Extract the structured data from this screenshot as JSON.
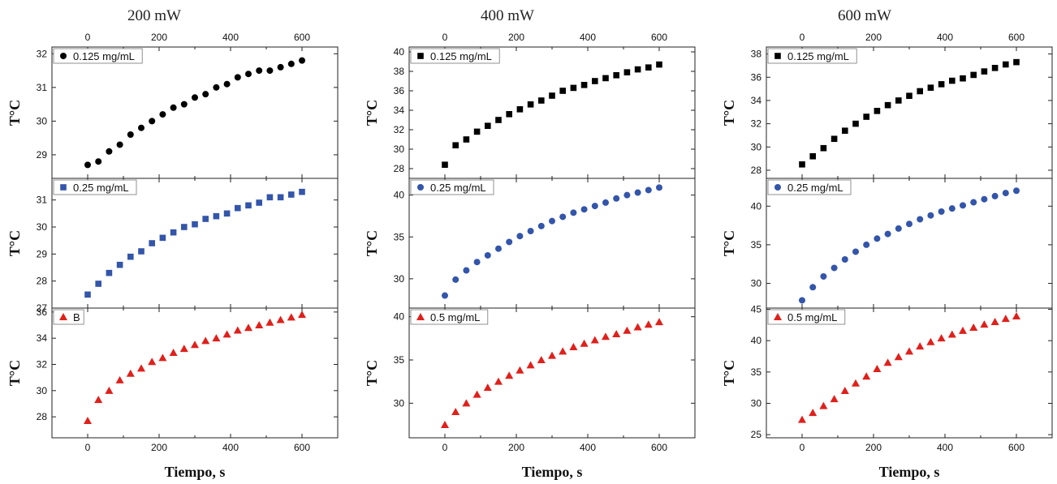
{
  "columns": [
    {
      "title": "200 mW",
      "xlabel": "Tiempo, s"
    },
    {
      "title": "400 mW",
      "xlabel": "Tiempo, s"
    },
    {
      "title": "600 mW",
      "xlabel": "Tiempo, s"
    }
  ],
  "colors": {
    "black": "#000000",
    "blue": "#3355aa",
    "red": "#e0201b"
  },
  "chart_data": [
    {
      "type": "scatter",
      "column_title": "200 mW",
      "ylabel": "T°C",
      "marker": "circle",
      "color": "#000000",
      "xlim": [
        -100,
        700
      ],
      "ylim": [
        28.3,
        32.2
      ],
      "xticks": [
        0,
        200,
        400,
        600
      ],
      "yticks": [
        29,
        30,
        31,
        32
      ],
      "series": [
        {
          "name": "0.125 mg/mL",
          "x": [
            0,
            30,
            60,
            90,
            120,
            150,
            180,
            210,
            240,
            270,
            300,
            330,
            360,
            390,
            420,
            450,
            480,
            510,
            540,
            570,
            600
          ],
          "y": [
            28.7,
            28.8,
            29.1,
            29.3,
            29.6,
            29.8,
            30.0,
            30.2,
            30.4,
            30.5,
            30.7,
            30.8,
            31.0,
            31.1,
            31.3,
            31.4,
            31.5,
            31.5,
            31.6,
            31.7,
            31.8
          ]
        }
      ]
    },
    {
      "type": "scatter",
      "column_title": "200 mW",
      "ylabel": "T°C",
      "marker": "square",
      "color": "#3355aa",
      "xlim": [
        -100,
        700
      ],
      "ylim": [
        27.0,
        31.8
      ],
      "xticks": [
        0,
        200,
        400,
        600
      ],
      "yticks": [
        27,
        28,
        29,
        30,
        31
      ],
      "series": [
        {
          "name": "0.25 mg/mL",
          "x": [
            0,
            30,
            60,
            90,
            120,
            150,
            180,
            210,
            240,
            270,
            300,
            330,
            360,
            390,
            420,
            450,
            480,
            510,
            540,
            570,
            600
          ],
          "y": [
            27.5,
            27.9,
            28.3,
            28.6,
            28.9,
            29.1,
            29.4,
            29.6,
            29.8,
            30.0,
            30.1,
            30.3,
            30.4,
            30.5,
            30.7,
            30.8,
            30.9,
            31.1,
            31.1,
            31.2,
            31.3
          ]
        }
      ]
    },
    {
      "type": "scatter",
      "column_title": "200 mW",
      "ylabel": "T°C",
      "marker": "triangle",
      "color": "#e0201b",
      "xlim": [
        -100,
        700
      ],
      "ylim": [
        26.4,
        36.3
      ],
      "xticks": [
        -100,
        0,
        100,
        200,
        300,
        400,
        500,
        600,
        700
      ],
      "xticklabels_shown": [
        0,
        200,
        400,
        600
      ],
      "yticks": [
        28,
        30,
        32,
        34,
        36
      ],
      "series": [
        {
          "name": "B",
          "x": [
            0,
            30,
            60,
            90,
            120,
            150,
            180,
            210,
            240,
            270,
            300,
            330,
            360,
            390,
            420,
            450,
            480,
            510,
            540,
            570,
            600
          ],
          "y": [
            27.7,
            29.3,
            30.0,
            30.8,
            31.3,
            31.7,
            32.2,
            32.5,
            32.9,
            33.2,
            33.5,
            33.8,
            34.0,
            34.3,
            34.6,
            34.8,
            35.0,
            35.2,
            35.4,
            35.6,
            35.8
          ]
        }
      ]
    },
    {
      "type": "scatter",
      "column_title": "400 mW",
      "ylabel": "T°C",
      "marker": "square",
      "color": "#000000",
      "xlim": [
        -100,
        700
      ],
      "ylim": [
        27.0,
        40.5
      ],
      "xticks": [
        0,
        200,
        400,
        600
      ],
      "yticks": [
        28,
        30,
        32,
        34,
        36,
        38,
        40
      ],
      "series": [
        {
          "name": "0.125 mg/mL",
          "x": [
            0,
            30,
            60,
            90,
            120,
            150,
            180,
            210,
            240,
            270,
            300,
            330,
            360,
            390,
            420,
            450,
            480,
            510,
            540,
            570,
            600
          ],
          "y": [
            28.4,
            30.4,
            31.0,
            31.8,
            32.4,
            33.0,
            33.6,
            34.1,
            34.6,
            35.0,
            35.5,
            36.0,
            36.3,
            36.6,
            37.0,
            37.3,
            37.6,
            37.9,
            38.2,
            38.4,
            38.7
          ]
        }
      ]
    },
    {
      "type": "scatter",
      "column_title": "400 mW",
      "ylabel": "T°C",
      "marker": "circle",
      "color": "#3355aa",
      "xlim": [
        -100,
        700
      ],
      "ylim": [
        26.5,
        42.0
      ],
      "xticks": [
        0,
        200,
        400,
        600
      ],
      "yticks": [
        30,
        35,
        40
      ],
      "series": [
        {
          "name": "0.25 mg/mL",
          "x": [
            0,
            30,
            60,
            90,
            120,
            150,
            180,
            210,
            240,
            270,
            300,
            330,
            360,
            390,
            420,
            450,
            480,
            510,
            540,
            570,
            600
          ],
          "y": [
            28.0,
            29.9,
            31.0,
            32.0,
            32.8,
            33.6,
            34.4,
            35.1,
            35.7,
            36.3,
            36.9,
            37.4,
            37.9,
            38.3,
            38.7,
            39.1,
            39.6,
            40.0,
            40.3,
            40.6,
            40.9
          ]
        }
      ]
    },
    {
      "type": "scatter",
      "column_title": "400 mW",
      "ylabel": "T°C",
      "marker": "triangle",
      "color": "#e0201b",
      "xlim": [
        -100,
        700
      ],
      "ylim": [
        26.0,
        41.0
      ],
      "xticks": [
        -100,
        0,
        100,
        200,
        300,
        400,
        500,
        600,
        700
      ],
      "xticklabels_shown": [
        0,
        200,
        400,
        600
      ],
      "yticks": [
        30,
        35,
        40
      ],
      "series": [
        {
          "name": "0.5 mg/mL",
          "x": [
            0,
            30,
            60,
            90,
            120,
            150,
            180,
            210,
            240,
            270,
            300,
            330,
            360,
            390,
            420,
            450,
            480,
            510,
            540,
            570,
            600
          ],
          "y": [
            27.5,
            29.0,
            30.0,
            31.0,
            31.8,
            32.5,
            33.2,
            33.8,
            34.4,
            35.0,
            35.5,
            36.0,
            36.5,
            36.9,
            37.3,
            37.7,
            38.0,
            38.4,
            38.8,
            39.1,
            39.4
          ]
        }
      ]
    },
    {
      "type": "scatter",
      "column_title": "600 mW",
      "ylabel": "T°C",
      "marker": "square",
      "color": "#000000",
      "xlim": [
        -100,
        700
      ],
      "ylim": [
        27.3,
        38.6
      ],
      "xticks": [
        0,
        200,
        400,
        600
      ],
      "yticks": [
        28,
        30,
        32,
        34,
        36,
        38
      ],
      "series": [
        {
          "name": "0.125 mg/mL",
          "x": [
            0,
            30,
            60,
            90,
            120,
            150,
            180,
            210,
            240,
            270,
            300,
            330,
            360,
            390,
            420,
            450,
            480,
            510,
            540,
            570,
            600
          ],
          "y": [
            28.5,
            29.2,
            29.9,
            30.7,
            31.4,
            32.0,
            32.6,
            33.1,
            33.6,
            34.0,
            34.4,
            34.8,
            35.1,
            35.4,
            35.7,
            35.9,
            36.2,
            36.5,
            36.8,
            37.1,
            37.3
          ]
        }
      ]
    },
    {
      "type": "scatter",
      "column_title": "600 mW",
      "ylabel": "T°C",
      "marker": "circle",
      "color": "#3355aa",
      "xlim": [
        -100,
        700
      ],
      "ylim": [
        26.8,
        43.6
      ],
      "xticks": [
        0,
        200,
        400,
        600
      ],
      "yticks": [
        30,
        35,
        40
      ],
      "series": [
        {
          "name": "0.25 mg/mL",
          "x": [
            0,
            30,
            60,
            90,
            120,
            150,
            180,
            210,
            240,
            270,
            300,
            330,
            360,
            390,
            420,
            450,
            480,
            510,
            540,
            570,
            600
          ],
          "y": [
            27.8,
            29.5,
            30.9,
            32.0,
            33.1,
            34.1,
            35.0,
            35.8,
            36.4,
            37.1,
            37.7,
            38.3,
            38.8,
            39.3,
            39.7,
            40.1,
            40.5,
            40.9,
            41.3,
            41.7,
            42.0
          ]
        }
      ]
    },
    {
      "type": "scatter",
      "column_title": "600 mW",
      "ylabel": "T°C",
      "marker": "triangle",
      "color": "#e0201b",
      "xlim": [
        -100,
        700
      ],
      "ylim": [
        24.5,
        45.2
      ],
      "xticks": [
        -100,
        0,
        100,
        200,
        300,
        400,
        500,
        600,
        700
      ],
      "xticklabels_shown": [
        0,
        200,
        400,
        600
      ],
      "yticks": [
        25,
        30,
        35,
        40,
        45
      ],
      "series": [
        {
          "name": "0.5 mg/mL",
          "x": [
            0,
            30,
            60,
            90,
            120,
            150,
            180,
            210,
            240,
            270,
            300,
            330,
            360,
            390,
            420,
            450,
            480,
            510,
            540,
            570,
            600
          ],
          "y": [
            27.4,
            28.5,
            29.6,
            30.7,
            32.0,
            33.2,
            34.3,
            35.5,
            36.5,
            37.4,
            38.3,
            39.1,
            39.8,
            40.4,
            41.0,
            41.6,
            42.1,
            42.6,
            43.0,
            43.5,
            43.9
          ]
        }
      ]
    }
  ]
}
